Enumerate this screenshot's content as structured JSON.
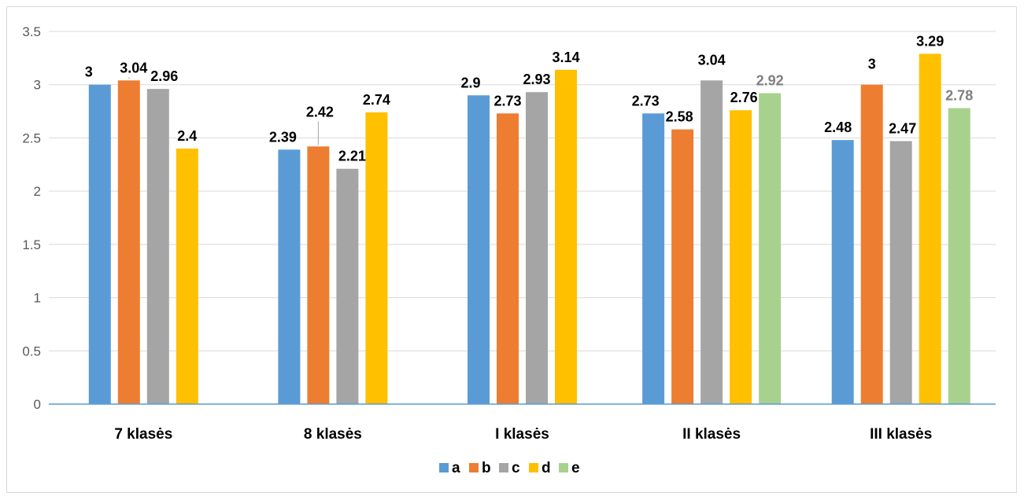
{
  "chart_data": {
    "type": "bar",
    "categories": [
      "7 klasės",
      "8 klasės",
      "I klasės",
      "II klasės",
      "III klasės"
    ],
    "series": [
      {
        "name": "a",
        "color": "#5B9BD5",
        "values": [
          3,
          2.39,
          2.9,
          2.73,
          2.48
        ]
      },
      {
        "name": "b",
        "color": "#ED7D31",
        "values": [
          3.04,
          2.42,
          2.73,
          2.58,
          3
        ]
      },
      {
        "name": "c",
        "color": "#A5A5A5",
        "values": [
          2.96,
          2.21,
          2.93,
          3.04,
          2.47
        ]
      },
      {
        "name": "d",
        "color": "#FFC000",
        "values": [
          2.4,
          2.74,
          3.14,
          2.76,
          3.29
        ]
      },
      {
        "name": "e",
        "color": "#A9D18E",
        "values": [
          null,
          null,
          null,
          2.92,
          2.78
        ]
      }
    ],
    "ylim": [
      0,
      3.5
    ],
    "yticks": [
      "0",
      "0.5",
      "1",
      "1.5",
      "2",
      "2.5",
      "3",
      "3.5"
    ],
    "grid": true,
    "legend_position": "bottom"
  }
}
